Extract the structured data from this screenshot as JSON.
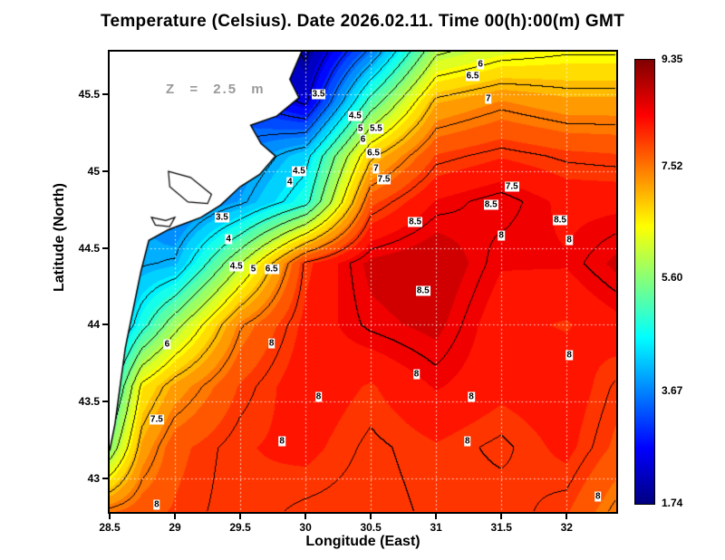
{
  "title": "Temperature (Celsius). Date 2026.02.11. Time 00(h):00(m) GMT",
  "annotation": "Z = 2.5 m",
  "axes": {
    "xlabel": "Longitude (East)",
    "ylabel": "Latitude (North)",
    "x_ticks": [
      "28.5",
      "29",
      "29.5",
      "30",
      "30.5",
      "31",
      "31.5",
      "32"
    ],
    "y_ticks": [
      "43",
      "43.5",
      "44",
      "44.5",
      "45",
      "45.5"
    ],
    "x_range": [
      28.5,
      32.38
    ],
    "y_range": [
      42.78,
      45.78
    ]
  },
  "colorbar": {
    "min": 1.74,
    "max": 9.35,
    "ticks": [
      "9.35",
      "7.52",
      "5.60",
      "3.67",
      "1.74"
    ],
    "colormap": [
      [
        0,
        "#000080"
      ],
      [
        0.125,
        "#0000ff"
      ],
      [
        0.375,
        "#00ffff"
      ],
      [
        0.625,
        "#ffff00"
      ],
      [
        0.875,
        "#ff0000"
      ],
      [
        1,
        "#800000"
      ]
    ]
  },
  "chart_data": {
    "type": "heatmap",
    "title": "Temperature (Celsius). Date 2026.02.11. Time 00(h):00(m) GMT",
    "variable": "Temperature",
    "units": "Celsius",
    "date": "2026.02.11",
    "time": "00(h):00(m) GMT",
    "depth_label": "Z = 2.5 m",
    "xlabel": "Longitude (East)",
    "ylabel": "Latitude (North)",
    "x_range": [
      28.5,
      32.38
    ],
    "y_range": [
      42.78,
      45.78
    ],
    "colorbar_range": [
      1.74,
      9.35
    ],
    "colorbar_ticks": [
      9.35,
      7.52,
      5.6,
      3.67,
      1.74
    ],
    "contour_interval_c": 0.5,
    "grid_on": true,
    "lon": [
      28.5,
      28.75,
      29.0,
      29.5,
      30.0,
      30.5,
      31.0,
      31.5,
      32.0,
      32.4
    ],
    "lat": [
      42.78,
      43.2,
      43.6,
      44.0,
      44.4,
      44.8,
      45.1,
      45.45,
      45.78
    ],
    "temperature_c": [
      [
        7.6,
        7.8,
        7.9,
        8.1,
        7.95,
        7.9,
        8.05,
        8.1,
        7.9,
        7.4
      ],
      [
        5.6,
        7.2,
        7.8,
        8.1,
        8.2,
        7.95,
        8.1,
        7.95,
        8.2,
        7.8
      ],
      [
        4.6,
        6.6,
        7.2,
        7.9,
        8.3,
        8.1,
        8.4,
        8.2,
        8.3,
        7.95
      ],
      [
        3.6,
        4.8,
        5.8,
        7.45,
        8.2,
        8.55,
        8.7,
        8.2,
        8.1,
        8.3
      ],
      [
        3.8,
        3.95,
        4.05,
        5.95,
        8.05,
        8.7,
        8.85,
        8.4,
        8.4,
        8.7
      ],
      [
        3.9,
        3.9,
        3.4,
        3.9,
        4.8,
        7.8,
        8.4,
        8.6,
        8.3,
        8.3
      ],
      [
        3.45,
        3.45,
        3.45,
        3.6,
        4.3,
        6.9,
        7.9,
        8.1,
        7.95,
        7.9
      ],
      [
        3.2,
        3.2,
        3.2,
        3.2,
        2.4,
        5.2,
        7.1,
        7.4,
        7.2,
        7.2
      ],
      [
        3.05,
        3.05,
        3.05,
        3.05,
        1.9,
        3.6,
        5.9,
        6.3,
        6.45,
        6.45
      ]
    ],
    "contour_labels": [
      {
        "level": "3.5",
        "lon": 30.1,
        "lat": 45.5
      },
      {
        "level": "4.5",
        "lon": 30.38,
        "lat": 45.36
      },
      {
        "level": "5",
        "lon": 30.42,
        "lat": 45.28
      },
      {
        "level": "5.5",
        "lon": 30.54,
        "lat": 45.28
      },
      {
        "level": "6",
        "lon": 30.44,
        "lat": 45.21
      },
      {
        "level": "6.5",
        "lon": 30.52,
        "lat": 45.12
      },
      {
        "level": "6",
        "lon": 31.34,
        "lat": 45.7
      },
      {
        "level": "6.5",
        "lon": 31.28,
        "lat": 45.62
      },
      {
        "level": "7",
        "lon": 31.4,
        "lat": 45.47
      },
      {
        "level": "7",
        "lon": 30.54,
        "lat": 45.02
      },
      {
        "level": "7.5",
        "lon": 30.6,
        "lat": 44.95
      },
      {
        "level": "4.5",
        "lon": 29.95,
        "lat": 45.0
      },
      {
        "level": "4",
        "lon": 29.88,
        "lat": 44.93
      },
      {
        "level": "7.5",
        "lon": 31.58,
        "lat": 44.9
      },
      {
        "level": "8.5",
        "lon": 31.42,
        "lat": 44.78
      },
      {
        "level": "8.5",
        "lon": 31.95,
        "lat": 44.68
      },
      {
        "level": "8",
        "lon": 31.5,
        "lat": 44.58
      },
      {
        "level": "8.5",
        "lon": 30.84,
        "lat": 44.67
      },
      {
        "level": "8",
        "lon": 32.02,
        "lat": 44.55
      },
      {
        "level": "3.5",
        "lon": 29.36,
        "lat": 44.7
      },
      {
        "level": "4",
        "lon": 29.41,
        "lat": 44.56
      },
      {
        "level": "4.5",
        "lon": 29.47,
        "lat": 44.38
      },
      {
        "level": "5",
        "lon": 29.6,
        "lat": 44.36
      },
      {
        "level": "6.5",
        "lon": 29.74,
        "lat": 44.36
      },
      {
        "level": "8.5",
        "lon": 30.9,
        "lat": 44.22
      },
      {
        "level": "8",
        "lon": 29.74,
        "lat": 43.88
      },
      {
        "level": "6",
        "lon": 28.94,
        "lat": 43.87
      },
      {
        "level": "8",
        "lon": 30.85,
        "lat": 43.68
      },
      {
        "level": "8",
        "lon": 32.02,
        "lat": 43.8
      },
      {
        "level": "8",
        "lon": 30.1,
        "lat": 43.53
      },
      {
        "level": "8",
        "lon": 31.27,
        "lat": 43.53
      },
      {
        "level": "7.5",
        "lon": 28.86,
        "lat": 43.38
      },
      {
        "level": "8",
        "lon": 29.82,
        "lat": 43.24
      },
      {
        "level": "8",
        "lon": 31.24,
        "lat": 43.24
      },
      {
        "level": "8",
        "lon": 28.86,
        "lat": 42.83
      },
      {
        "level": "8",
        "lon": 32.24,
        "lat": 42.88
      }
    ],
    "land_polygon": [
      [
        28.5,
        45.78
      ],
      [
        29.97,
        45.78
      ],
      [
        29.88,
        45.6
      ],
      [
        29.95,
        45.48
      ],
      [
        29.78,
        45.36
      ],
      [
        29.58,
        45.3
      ],
      [
        29.66,
        45.18
      ],
      [
        29.77,
        45.1
      ],
      [
        29.65,
        44.98
      ],
      [
        29.5,
        44.9
      ],
      [
        29.35,
        44.78
      ],
      [
        29.2,
        44.7
      ],
      [
        28.95,
        44.62
      ],
      [
        28.8,
        44.55
      ],
      [
        28.74,
        44.35
      ],
      [
        28.68,
        44.1
      ],
      [
        28.62,
        43.85
      ],
      [
        28.58,
        43.6
      ],
      [
        28.54,
        43.35
      ],
      [
        28.5,
        43.18
      ]
    ],
    "lakes": [
      [
        [
          28.95,
          45.0
        ],
        [
          29.12,
          44.96
        ],
        [
          29.28,
          44.85
        ],
        [
          29.25,
          44.79
        ],
        [
          29.1,
          44.8
        ],
        [
          28.96,
          44.9
        ]
      ],
      [
        [
          28.82,
          44.7
        ],
        [
          28.93,
          44.68
        ],
        [
          29.0,
          44.7
        ],
        [
          28.96,
          44.64
        ],
        [
          28.85,
          44.65
        ]
      ]
    ]
  }
}
